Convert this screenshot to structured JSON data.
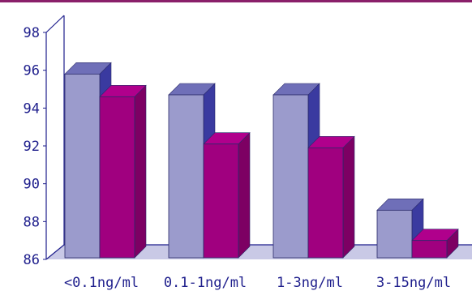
{
  "chart_data": {
    "type": "bar",
    "categories": [
      "<0.1ng/ml",
      "0.1-1ng/ml",
      "1-3ng/ml",
      "3-15ng/ml"
    ],
    "series": [
      {
        "values": [
          95.8,
          94.7,
          94.7,
          88.6
        ],
        "color": "#9b9bcc"
      },
      {
        "values": [
          94.6,
          92.1,
          91.9,
          87.0
        ],
        "color": "#a0007f"
      }
    ],
    "y_ticks": [
      86,
      88,
      90,
      92,
      94,
      96,
      98
    ],
    "ylim": [
      86,
      98
    ],
    "title": "",
    "xlabel": "",
    "ylabel": "",
    "grid": false,
    "three_d": true
  },
  "colors": {
    "axis": "#1e1e8c",
    "floor": "#c9c9e6",
    "top_band": "#8a1f6a"
  }
}
